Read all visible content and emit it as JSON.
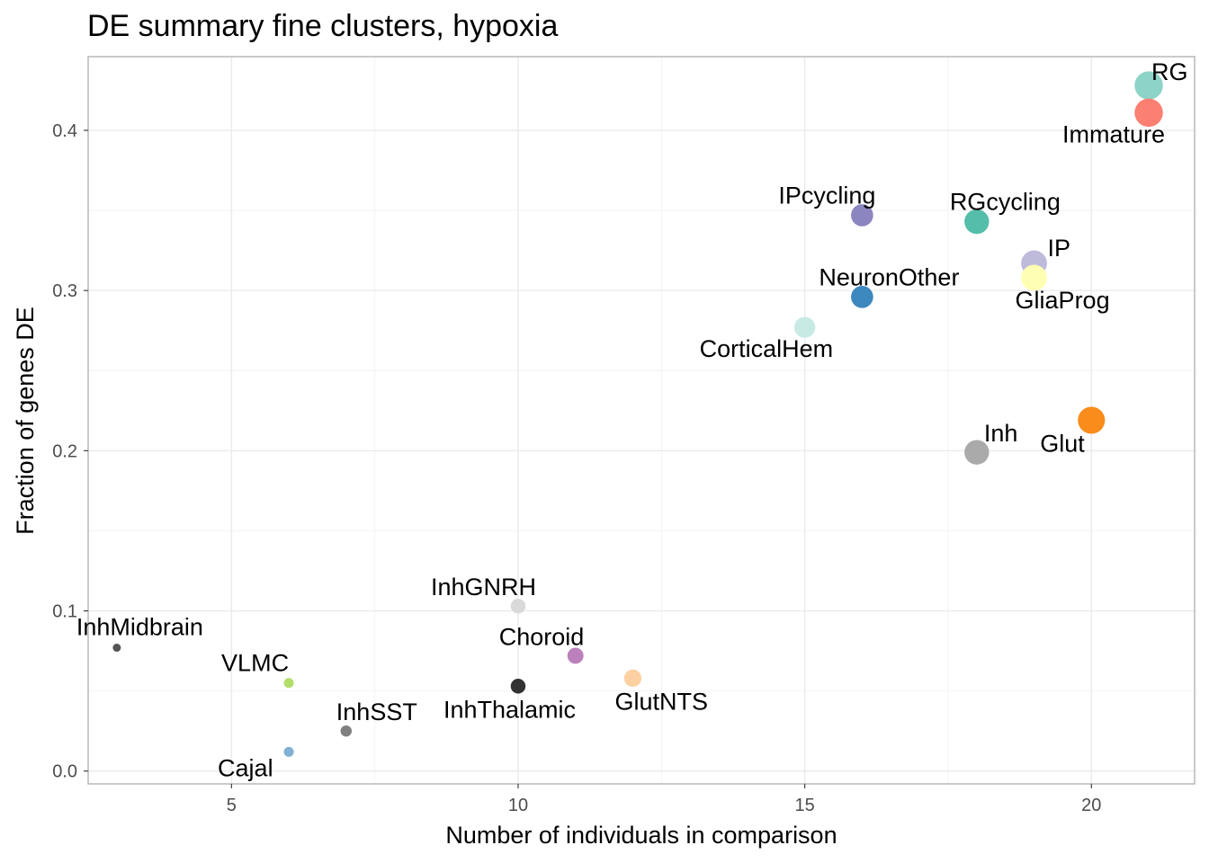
{
  "chart_data": {
    "type": "scatter",
    "title": "DE summary fine clusters, hypoxia",
    "xlabel": "Number of individuals in comparison",
    "ylabel": "Fraction of genes DE",
    "xlim": [
      2.5,
      21.8
    ],
    "ylim": [
      -0.008,
      0.446
    ],
    "x_ticks": [
      5,
      10,
      15,
      20
    ],
    "y_ticks": [
      0.0,
      0.1,
      0.2,
      0.3,
      0.4
    ],
    "x_tick_labels": [
      "5",
      "10",
      "15",
      "20"
    ],
    "y_tick_labels": [
      "0.0",
      "0.1",
      "0.2",
      "0.3",
      "0.4"
    ],
    "grid": true,
    "legend": "none",
    "points": [
      {
        "label": "RG",
        "x": 21,
        "y": 0.428,
        "color": "#8DD3C7"
      },
      {
        "label": "Immature",
        "x": 21,
        "y": 0.411,
        "color": "#FB8072"
      },
      {
        "label": "IPcycling",
        "x": 16,
        "y": 0.347,
        "color": "#8C86C0"
      },
      {
        "label": "RGcycling",
        "x": 18,
        "y": 0.343,
        "color": "#54BEAA"
      },
      {
        "label": "IP",
        "x": 19,
        "y": 0.317,
        "color": "#BEBADA"
      },
      {
        "label": "GliaProg",
        "x": 19,
        "y": 0.308,
        "color": "#FFFFB3"
      },
      {
        "label": "NeuronOther",
        "x": 16,
        "y": 0.296,
        "color": "#3E88C0"
      },
      {
        "label": "CorticalHem",
        "x": 15,
        "y": 0.277,
        "color": "#C7EAE5"
      },
      {
        "label": "Glut",
        "x": 20,
        "y": 0.219,
        "color": "#F98C1A"
      },
      {
        "label": "Inh",
        "x": 18,
        "y": 0.199,
        "color": "#AAAAAA"
      },
      {
        "label": "InhGNRH",
        "x": 10,
        "y": 0.103,
        "color": "#D9D9D9"
      },
      {
        "label": "InhMidbrain",
        "x": 3,
        "y": 0.077,
        "color": "#555555"
      },
      {
        "label": "Choroid",
        "x": 11,
        "y": 0.072,
        "color": "#BC80BD"
      },
      {
        "label": "GlutNTS",
        "x": 12,
        "y": 0.058,
        "color": "#FDD0A2"
      },
      {
        "label": "VLMC",
        "x": 6,
        "y": 0.055,
        "color": "#B3DE69"
      },
      {
        "label": "InhThalamic",
        "x": 10,
        "y": 0.053,
        "color": "#333333"
      },
      {
        "label": "InhSST",
        "x": 7,
        "y": 0.025,
        "color": "#808080"
      },
      {
        "label": "Cajal",
        "x": 6,
        "y": 0.012,
        "color": "#80B1D3"
      }
    ]
  }
}
